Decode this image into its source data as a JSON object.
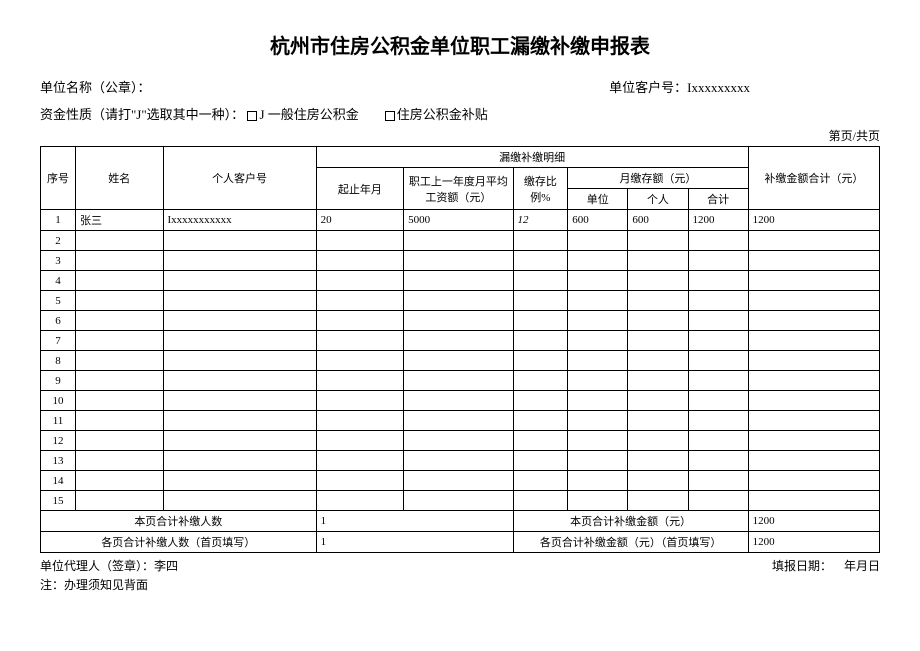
{
  "title": "杭州市住房公积金单位职工漏缴补缴申报表",
  "header": {
    "org_label": "单位名称（公章）：",
    "customer_label": "单位客户号：",
    "customer_value": "Ixxxxxxxxx",
    "fund_type_label": "资金性质（请打\"J\"选取其中一种）：",
    "fund_option1": "J 一般住房公积金",
    "fund_option2": "住房公积金补贴",
    "page_count": "第页/共页"
  },
  "columns": {
    "seq": "序号",
    "name": "姓名",
    "account": "个人客户号",
    "detail_group": "漏缴补缴明细",
    "period": "起止年月",
    "salary": "职工上一年度月平均工资额（元）",
    "ratio": "缴存比例%",
    "deposit_group": "月缴存额（元）",
    "deposit_org": "单位",
    "deposit_person": "个人",
    "deposit_sum": "合计",
    "total": "补缴金额合计（元）"
  },
  "rows": [
    {
      "seq": "1",
      "name": "张三",
      "account": "Ixxxxxxxxxxx",
      "period": "20",
      "salary": "5000",
      "ratio": "12",
      "dep_org": "600",
      "dep_person": "600",
      "dep_sum": "1200",
      "total": "1200"
    },
    {
      "seq": "2"
    },
    {
      "seq": "3"
    },
    {
      "seq": "4"
    },
    {
      "seq": "5"
    },
    {
      "seq": "6"
    },
    {
      "seq": "7"
    },
    {
      "seq": "8"
    },
    {
      "seq": "9"
    },
    {
      "seq": "10"
    },
    {
      "seq": "11"
    },
    {
      "seq": "12"
    },
    {
      "seq": "13"
    },
    {
      "seq": "14"
    },
    {
      "seq": "15"
    }
  ],
  "summary": {
    "page_people_label": "本页合计补缴人数",
    "page_people_value": "1",
    "page_amount_label": "本页合计补缴金额（元）",
    "page_amount_value": "1200",
    "all_people_label": "各页合计补缴人数（首页填写）",
    "all_people_value": "1",
    "all_amount_label": "各页合计补缴金额（元）（首页填写）",
    "all_amount_value": "1200"
  },
  "footer": {
    "agent_label": "单位代理人（签章）：",
    "agent_value": "李四",
    "date_label": "填报日期：",
    "date_value": "年月日",
    "note": "注：办理须知见背面"
  }
}
